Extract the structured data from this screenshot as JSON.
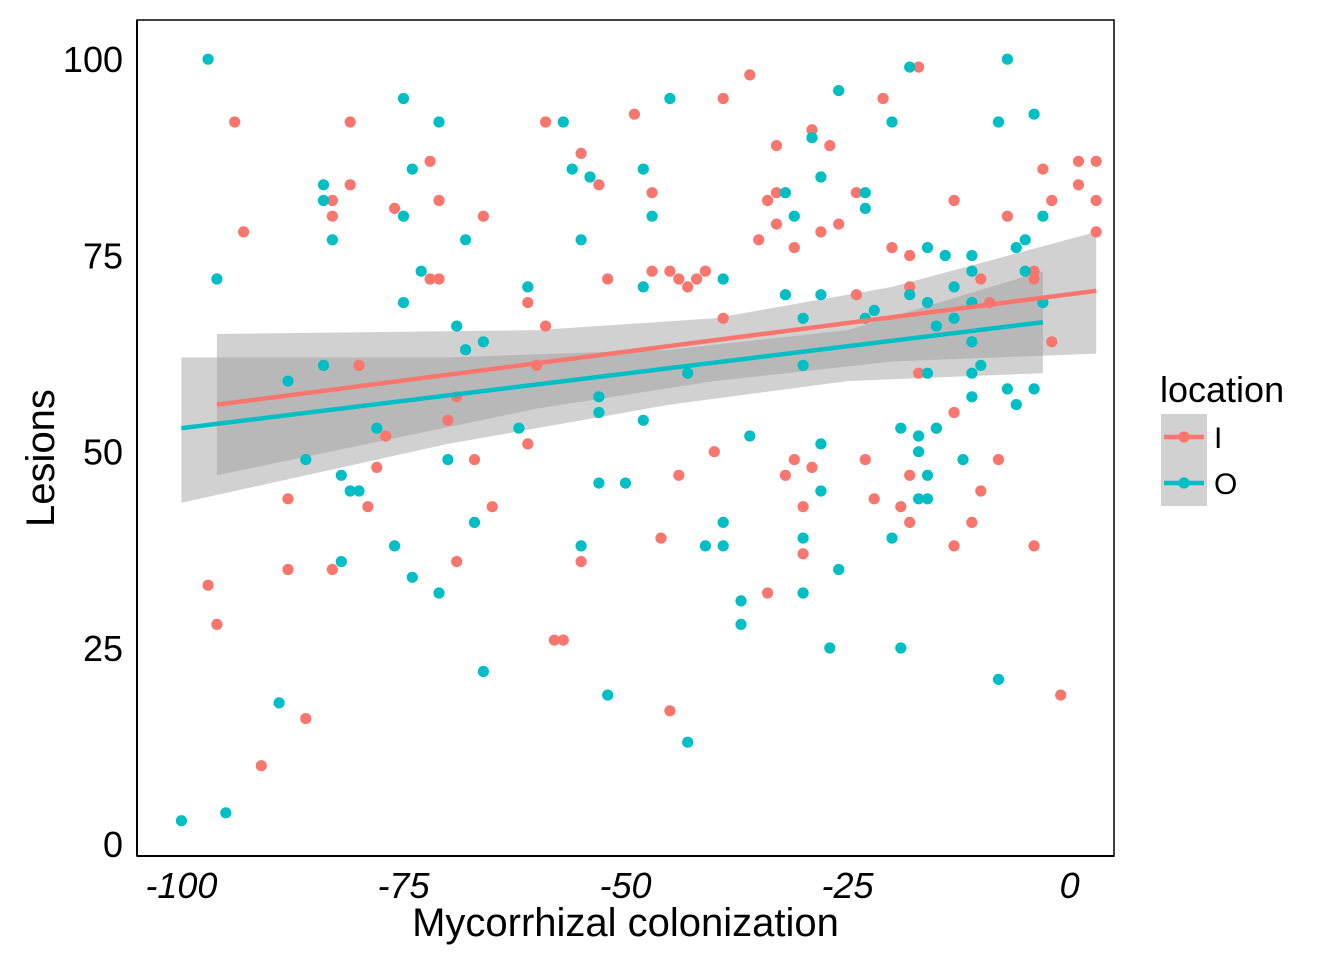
{
  "chart_data": {
    "type": "scatter",
    "title": "",
    "xlabel": "Mycorrhizal colonization",
    "ylabel": "Lesions",
    "xlim": [
      -105,
      5
    ],
    "ylim": [
      -1.5,
      105
    ],
    "x_ticks": [
      -100,
      -75,
      -50,
      -25,
      0
    ],
    "x_tick_labels": [
      "-100",
      "-75",
      "-50",
      "-25",
      "0"
    ],
    "y_ticks": [
      0,
      25,
      50,
      75,
      100
    ],
    "y_tick_labels": [
      "0",
      "25",
      "50",
      "75",
      "100"
    ],
    "grid": false,
    "legend": {
      "title": "location",
      "placement": "right"
    },
    "series": [
      {
        "name": "I",
        "color": "#F8766D",
        "points": [
          [
            -97,
            33
          ],
          [
            -96,
            28
          ],
          [
            -94,
            92
          ],
          [
            -93,
            78
          ],
          [
            -91,
            10
          ],
          [
            -88,
            44
          ],
          [
            -88,
            35
          ],
          [
            -86,
            16
          ],
          [
            -83,
            82
          ],
          [
            -83,
            80
          ],
          [
            -83,
            35
          ],
          [
            -81,
            92
          ],
          [
            -81,
            84
          ],
          [
            -80,
            61
          ],
          [
            -79,
            43
          ],
          [
            -78,
            48
          ],
          [
            -77,
            52
          ],
          [
            -76,
            81
          ],
          [
            -72,
            87
          ],
          [
            -72,
            72
          ],
          [
            -71,
            72
          ],
          [
            -71,
            82
          ],
          [
            -70,
            54
          ],
          [
            -69,
            57
          ],
          [
            -69,
            36
          ],
          [
            -67,
            49
          ],
          [
            -66,
            80
          ],
          [
            -65,
            43
          ],
          [
            -61,
            69
          ],
          [
            -61,
            51
          ],
          [
            -60,
            61
          ],
          [
            -59,
            92
          ],
          [
            -59,
            66
          ],
          [
            -58,
            26
          ],
          [
            -57,
            26
          ],
          [
            -55,
            88
          ],
          [
            -55,
            36
          ],
          [
            -53,
            84
          ],
          [
            -52,
            72
          ],
          [
            -49,
            93
          ],
          [
            -47,
            83
          ],
          [
            -47,
            73
          ],
          [
            -46,
            39
          ],
          [
            -45,
            73
          ],
          [
            -45,
            17
          ],
          [
            -44,
            47
          ],
          [
            -44,
            72
          ],
          [
            -43,
            71
          ],
          [
            -42,
            72
          ],
          [
            -41,
            73
          ],
          [
            -40,
            50
          ],
          [
            -39,
            67
          ],
          [
            -39,
            95
          ],
          [
            -36,
            98
          ],
          [
            -35,
            77
          ],
          [
            -34,
            82
          ],
          [
            -34,
            32
          ],
          [
            -33,
            89
          ],
          [
            -33,
            83
          ],
          [
            -33,
            79
          ],
          [
            -32,
            47
          ],
          [
            -31,
            76
          ],
          [
            -31,
            49
          ],
          [
            -30,
            43
          ],
          [
            -30,
            37
          ],
          [
            -29,
            91
          ],
          [
            -29,
            48
          ],
          [
            -28,
            78
          ],
          [
            -27,
            89
          ],
          [
            -26,
            79
          ],
          [
            -24,
            83
          ],
          [
            -24,
            70
          ],
          [
            -23,
            49
          ],
          [
            -22,
            44
          ],
          [
            -21,
            95
          ],
          [
            -20,
            76
          ],
          [
            -19,
            43
          ],
          [
            -18,
            75
          ],
          [
            -18,
            71
          ],
          [
            -18,
            47
          ],
          [
            -18,
            41
          ],
          [
            -17,
            60
          ],
          [
            -17,
            99
          ],
          [
            -15,
            53
          ],
          [
            -13,
            82
          ],
          [
            -13,
            55
          ],
          [
            -13,
            38
          ],
          [
            -11,
            41
          ],
          [
            -10,
            72
          ],
          [
            -10,
            45
          ],
          [
            -9,
            69
          ],
          [
            -8,
            49
          ],
          [
            -7,
            80
          ],
          [
            -4,
            73
          ],
          [
            -4,
            72
          ],
          [
            -4,
            38
          ],
          [
            -3,
            86
          ],
          [
            -2,
            82
          ],
          [
            -2,
            64
          ],
          [
            -1,
            19
          ],
          [
            1,
            87
          ],
          [
            1,
            84
          ],
          [
            3,
            87
          ],
          [
            3,
            82
          ],
          [
            3,
            78
          ]
        ],
        "fit": {
          "x": [
            -96,
            3
          ],
          "y": [
            56,
            70.5
          ]
        },
        "band": {
          "x": [
            -96,
            -60,
            -40,
            -20,
            3
          ],
          "lower": [
            47,
            55.5,
            59,
            61.5,
            62.5
          ],
          "upper": [
            65,
            65.5,
            67,
            71,
            78
          ]
        }
      },
      {
        "name": "O",
        "color": "#00BFC4",
        "points": [
          [
            -100,
            3
          ],
          [
            -97,
            100
          ],
          [
            -96,
            72
          ],
          [
            -95,
            4
          ],
          [
            -89,
            18
          ],
          [
            -88,
            59
          ],
          [
            -86,
            49
          ],
          [
            -84,
            84
          ],
          [
            -84,
            82
          ],
          [
            -84,
            61
          ],
          [
            -83,
            77
          ],
          [
            -82,
            47
          ],
          [
            -82,
            36
          ],
          [
            -81,
            45
          ],
          [
            -80,
            45
          ],
          [
            -78,
            53
          ],
          [
            -76,
            38
          ],
          [
            -75,
            95
          ],
          [
            -75,
            80
          ],
          [
            -75,
            69
          ],
          [
            -74,
            86
          ],
          [
            -74,
            34
          ],
          [
            -73,
            73
          ],
          [
            -71,
            92
          ],
          [
            -71,
            32
          ],
          [
            -70,
            49
          ],
          [
            -69,
            66
          ],
          [
            -68,
            63
          ],
          [
            -68,
            77
          ],
          [
            -67,
            41
          ],
          [
            -66,
            64
          ],
          [
            -66,
            22
          ],
          [
            -62,
            53
          ],
          [
            -61,
            71
          ],
          [
            -57,
            92
          ],
          [
            -56,
            86
          ],
          [
            -55,
            77
          ],
          [
            -55,
            38
          ],
          [
            -54,
            85
          ],
          [
            -53,
            57
          ],
          [
            -53,
            55
          ],
          [
            -53,
            46
          ],
          [
            -52,
            19
          ],
          [
            -50,
            46
          ],
          [
            -48,
            86
          ],
          [
            -48,
            71
          ],
          [
            -48,
            54
          ],
          [
            -47,
            80
          ],
          [
            -45,
            95
          ],
          [
            -43,
            60
          ],
          [
            -43,
            13
          ],
          [
            -41,
            38
          ],
          [
            -39,
            72
          ],
          [
            -39,
            41
          ],
          [
            -39,
            38
          ],
          [
            -37,
            31
          ],
          [
            -37,
            28
          ],
          [
            -36,
            52
          ],
          [
            -32,
            70
          ],
          [
            -32,
            83
          ],
          [
            -31,
            80
          ],
          [
            -30,
            67
          ],
          [
            -30,
            61
          ],
          [
            -30,
            39
          ],
          [
            -30,
            32
          ],
          [
            -29,
            90
          ],
          [
            -28,
            85
          ],
          [
            -28,
            70
          ],
          [
            -28,
            51
          ],
          [
            -28,
            45
          ],
          [
            -27,
            25
          ],
          [
            -26,
            96
          ],
          [
            -26,
            35
          ],
          [
            -23,
            83
          ],
          [
            -23,
            81
          ],
          [
            -23,
            67
          ],
          [
            -22,
            68
          ],
          [
            -20,
            92
          ],
          [
            -20,
            39
          ],
          [
            -19,
            53
          ],
          [
            -19,
            25
          ],
          [
            -18,
            99
          ],
          [
            -18,
            70
          ],
          [
            -17,
            52
          ],
          [
            -17,
            50
          ],
          [
            -17,
            44
          ],
          [
            -16,
            76
          ],
          [
            -16,
            69
          ],
          [
            -16,
            60
          ],
          [
            -16,
            47
          ],
          [
            -16,
            44
          ],
          [
            -15,
            66
          ],
          [
            -15,
            53
          ],
          [
            -14,
            75
          ],
          [
            -13,
            71
          ],
          [
            -13,
            67
          ],
          [
            -12,
            49
          ],
          [
            -11,
            69
          ],
          [
            -11,
            64
          ],
          [
            -11,
            60
          ],
          [
            -11,
            57
          ],
          [
            -11,
            75
          ],
          [
            -11,
            73
          ],
          [
            -10,
            61
          ],
          [
            -8,
            92
          ],
          [
            -8,
            21
          ],
          [
            -7,
            100
          ],
          [
            -7,
            58
          ],
          [
            -6,
            76
          ],
          [
            -6,
            56
          ],
          [
            -5,
            77
          ],
          [
            -5,
            73
          ],
          [
            -4,
            93
          ],
          [
            -4,
            58
          ],
          [
            -3,
            80
          ],
          [
            -3,
            69
          ]
        ],
        "fit": {
          "x": [
            -100,
            -3
          ],
          "y": [
            53,
            66.5
          ]
        },
        "band": {
          "x": [
            -100,
            -70,
            -45,
            -25,
            -3
          ],
          "lower": [
            43.5,
            51,
            56,
            59,
            60
          ],
          "upper": [
            62,
            62,
            63,
            65.5,
            73
          ]
        }
      }
    ]
  }
}
